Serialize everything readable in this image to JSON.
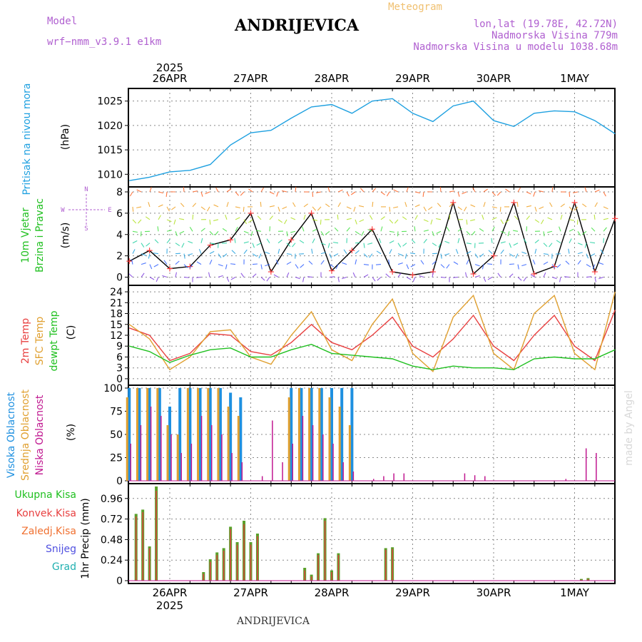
{
  "header": {
    "model_label": "Model",
    "model_name": "wrf−nmm_v3.9.1  e1km",
    "meteogram": "Meteogram",
    "station": "ANDRIJEVICA",
    "lonlat": "lon,lat (19.78E, 42.72N)",
    "altitude": "Nadmorska Visina 779m",
    "model_altitude": "Nadmorska Visina u modelu 1038.68m",
    "year_top": "2025",
    "year_bottom": "2025",
    "footer_station": "ANDRIJEVICA",
    "watermark": "made by Angel"
  },
  "dates": [
    "26APR",
    "27APR",
    "28APR",
    "29APR",
    "30APR",
    "1MAY"
  ],
  "colors": {
    "pressure": "#1ea0e0",
    "temp2m": "#e84040",
    "sfc": "#e0a030",
    "dewpt": "#20c020",
    "high_cloud": "#1e90e0",
    "mid_cloud": "#e0a030",
    "low_cloud": "#c01890",
    "total_precip": "#5aa02a",
    "conv_precip": "#e04040"
  },
  "panels": {
    "pressure": {
      "label": "Pritisak na nivou mora",
      "unit": "(hPa)",
      "ticks": [
        "1010",
        "1015",
        "1020",
        "1025"
      ]
    },
    "wind": {
      "label1": "10m Vjetar",
      "label2": "Brzina i Pravac",
      "unit": "(m/s)",
      "ticks": [
        "0",
        "2",
        "4",
        "6",
        "8"
      ],
      "compass": {
        "n": "N",
        "s": "S",
        "w": "W",
        "e": "E"
      }
    },
    "temp": {
      "label1": "2m Temp",
      "label2": "SFC Temp",
      "label3": "dewpt Temp",
      "unit": "(C)",
      "ticks": [
        "0",
        "3",
        "6",
        "9",
        "12",
        "15",
        "18",
        "21",
        "24"
      ]
    },
    "cloud": {
      "label1": "Visoka Oblacnost",
      "label2": "Srednja Oblacnost",
      "label3": "Niska Oblacnost",
      "unit": "(%)",
      "ticks": [
        "0",
        "25",
        "50",
        "75",
        "100"
      ]
    },
    "precip": {
      "label_total": "Ukupna Kisa",
      "label_conv": "Konvek.Kisa",
      "label_frozen": "Zaledj.Kisa",
      "label_snow": "Snijeg",
      "label_hail": "Grad",
      "unit": "1hr Precip (mm)",
      "ticks": [
        "0",
        "0.24",
        "0.48",
        "0.72",
        "0.96"
      ]
    }
  },
  "chart_data": [
    {
      "type": "line",
      "title": "Pritisak na nivou mora",
      "ylabel": "(hPa)",
      "ylim": [
        1008,
        1027
      ],
      "x_hours_from_26APR_00": [
        -12,
        -6,
        0,
        6,
        12,
        18,
        24,
        30,
        36,
        42,
        48,
        54,
        60,
        66,
        72,
        78,
        84,
        90,
        96,
        102,
        108,
        114,
        120,
        126,
        132
      ],
      "series": [
        {
          "values": [
            1008.7,
            1009.4,
            1010.5,
            1010.8,
            1012.0,
            1016.0,
            1018.5,
            1019.0,
            1021.5,
            1023.8,
            1024.3,
            1022.5,
            1025.0,
            1025.5,
            1022.5,
            1020.8,
            1024.0,
            1025.0,
            1021.0,
            1019.8,
            1022.5,
            1023.0,
            1022.8,
            1021.0,
            1018.3
          ]
        }
      ]
    },
    {
      "type": "line",
      "title": "10m Vjetar Brzina i Pravac",
      "ylabel": "(m/s)",
      "ylim": [
        -0.5,
        8.2
      ],
      "x_hours_from_26APR_00": [
        -12,
        -6,
        0,
        6,
        12,
        18,
        24,
        30,
        36,
        42,
        48,
        54,
        60,
        66,
        72,
        78,
        84,
        90,
        96,
        102,
        108,
        114,
        120,
        126,
        132
      ],
      "series": [
        {
          "values": [
            1.5,
            2.5,
            0.8,
            1.0,
            3.0,
            3.5,
            6.0,
            0.5,
            3.5,
            6.0,
            0.6,
            2.5,
            4.5,
            0.5,
            0.2,
            0.5,
            7.0,
            0.3,
            2.0,
            7.0,
            0.3,
            1.0,
            7.0,
            0.5,
            5.5
          ]
        }
      ]
    },
    {
      "type": "line",
      "title": "2m Temp / SFC Temp / dewpt Temp",
      "ylabel": "(C)",
      "ylim": [
        -1,
        25
      ],
      "x_hours_from_26APR_00": [
        -12,
        -6,
        0,
        6,
        12,
        18,
        24,
        30,
        36,
        42,
        48,
        54,
        60,
        66,
        72,
        78,
        84,
        90,
        96,
        102,
        108,
        114,
        120,
        126,
        132
      ],
      "series": [
        {
          "name": "2m Temp",
          "values": [
            14.0,
            12.0,
            5.0,
            7.0,
            12.5,
            12.0,
            7.5,
            6.5,
            10.0,
            15.0,
            10.0,
            8.0,
            12.0,
            17.0,
            9.0,
            6.0,
            11.0,
            17.5,
            9.0,
            5.0,
            12.0,
            17.5,
            9.0,
            5.0,
            19.0
          ]
        },
        {
          "name": "SFC Temp",
          "values": [
            15.0,
            11.0,
            2.5,
            6.0,
            13.0,
            13.5,
            6.0,
            4.0,
            12.0,
            18.5,
            8.0,
            5.0,
            15.0,
            22.0,
            7.0,
            2.0,
            17.0,
            23.0,
            7.0,
            2.5,
            18.0,
            23.0,
            7.0,
            2.5,
            24.0
          ]
        },
        {
          "name": "dewpt Temp",
          "values": [
            9.0,
            7.5,
            4.5,
            6.5,
            8.0,
            8.5,
            6.0,
            6.0,
            8.0,
            9.5,
            7.0,
            6.5,
            6.0,
            5.5,
            3.5,
            2.5,
            3.5,
            3.0,
            3.0,
            2.5,
            5.5,
            6.0,
            5.5,
            5.5,
            8.0
          ]
        }
      ]
    },
    {
      "type": "bar",
      "title": "Visoka / Srednja / Niska Oblacnost",
      "ylabel": "(%)",
      "ylim": [
        0,
        100
      ],
      "x_hours_from_26APR_00": [
        -12,
        -9,
        -6,
        -3,
        0,
        3,
        6,
        9,
        12,
        15,
        18,
        21,
        24,
        27,
        30,
        33,
        36,
        39,
        42,
        45,
        48,
        51,
        54,
        57,
        60,
        63,
        66,
        69,
        72,
        75,
        78,
        81,
        84,
        87,
        90,
        93,
        96,
        99,
        102,
        105,
        108,
        111,
        114,
        117,
        120,
        123,
        126,
        129
      ],
      "series": [
        {
          "name": "Visoka Oblacnost",
          "values": [
            100,
            100,
            100,
            100,
            80,
            100,
            100,
            100,
            100,
            100,
            95,
            90,
            0,
            0,
            0,
            0,
            100,
            100,
            100,
            100,
            100,
            100,
            100,
            0,
            0,
            0,
            0,
            0,
            0,
            0,
            0,
            0,
            0,
            0,
            0,
            0,
            0,
            0,
            0,
            0,
            0,
            0,
            0,
            0,
            0,
            0,
            0,
            0
          ]
        },
        {
          "name": "Srednja Oblacnost",
          "values": [
            90,
            100,
            100,
            100,
            60,
            50,
            100,
            100,
            100,
            100,
            80,
            70,
            0,
            0,
            0,
            0,
            90,
            100,
            100,
            100,
            90,
            80,
            60,
            0,
            0,
            0,
            0,
            0,
            0,
            0,
            0,
            0,
            0,
            0,
            0,
            0,
            0,
            0,
            0,
            0,
            0,
            0,
            0,
            0,
            0,
            0,
            0,
            0
          ]
        },
        {
          "name": "Niska Oblacnost",
          "values": [
            40,
            60,
            80,
            70,
            50,
            30,
            40,
            70,
            60,
            50,
            30,
            20,
            0,
            5,
            65,
            20,
            40,
            70,
            60,
            50,
            40,
            20,
            10,
            0,
            2,
            5,
            8,
            8,
            0,
            0,
            0,
            0,
            0,
            8,
            6,
            5,
            0,
            0,
            0,
            0,
            0,
            0,
            0,
            2,
            0,
            35,
            30,
            0
          ]
        }
      ]
    },
    {
      "type": "bar",
      "title": "1hr Precip",
      "ylabel": "1hr Precip (mm)",
      "ylim": [
        0,
        1.1
      ],
      "x_hours_from_26APR_00": [
        -10,
        -8,
        -6,
        -4,
        -2,
        10,
        12,
        14,
        16,
        18,
        20,
        22,
        24,
        26,
        40,
        42,
        44,
        46,
        48,
        50,
        64,
        66,
        88,
        104,
        122,
        124
      ],
      "series": [
        {
          "name": "Ukupna Kisa",
          "values": [
            0.78,
            0.83,
            0.4,
            1.1,
            0.0,
            0.1,
            0.25,
            0.33,
            0.38,
            0.63,
            0.45,
            0.7,
            0.45,
            0.55,
            0.15,
            0.07,
            0.32,
            0.73,
            0.12,
            0.32,
            0.38,
            0.39,
            0.0,
            0.0,
            0.02,
            0.03
          ]
        },
        {
          "name": "Konvek.Kisa",
          "values": [
            0.75,
            0.8,
            0.38,
            1.05,
            0.0,
            0.08,
            0.22,
            0.3,
            0.35,
            0.6,
            0.42,
            0.66,
            0.42,
            0.52,
            0.12,
            0.05,
            0.3,
            0.7,
            0.1,
            0.3,
            0.36,
            0.37,
            0.0,
            0.0,
            0.01,
            0.02
          ]
        }
      ]
    }
  ]
}
